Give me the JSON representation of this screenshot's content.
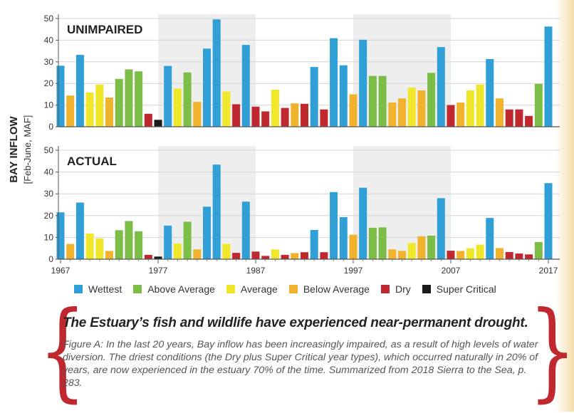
{
  "chart_data": {
    "type": "bar",
    "ylabel": "BAY INFLOW",
    "ylabel_sub": "[Feb-June, MAF]",
    "x_ticks": [
      "1967",
      "1977",
      "1987",
      "1997",
      "2007",
      "2017"
    ],
    "x_range": [
      1967,
      2017
    ],
    "y_ticks": [
      "0",
      "10",
      "20",
      "30",
      "40",
      "50"
    ],
    "ylim": [
      0,
      50
    ],
    "legend_position": "bottom",
    "shaded_bands": [
      [
        1977,
        1987
      ],
      [
        1997,
        2007
      ]
    ],
    "legend": [
      {
        "key": "W",
        "label": "Wettest",
        "color": "#2f9fd6"
      },
      {
        "key": "AN",
        "label": "Above Average",
        "color": "#7cbd48"
      },
      {
        "key": "N",
        "label": "Average",
        "color": "#f0e72a"
      },
      {
        "key": "BN",
        "label": "Below Average",
        "color": "#f1b32d"
      },
      {
        "key": "D",
        "label": "Dry",
        "color": "#c0282f"
      },
      {
        "key": "C",
        "label": "Super Critical",
        "color": "#1a1a1a"
      }
    ],
    "years": [
      1967,
      1968,
      1969,
      1970,
      1971,
      1972,
      1973,
      1974,
      1975,
      1976,
      1977,
      1978,
      1979,
      1980,
      1981,
      1982,
      1983,
      1984,
      1985,
      1986,
      1987,
      1988,
      1989,
      1990,
      1991,
      1992,
      1993,
      1994,
      1995,
      1996,
      1997,
      1998,
      1999,
      2000,
      2001,
      2002,
      2003,
      2004,
      2005,
      2006,
      2007,
      2008,
      2009,
      2010,
      2011,
      2012,
      2013,
      2014,
      2015,
      2016,
      2017
    ],
    "year_types": [
      "W",
      "BN",
      "W",
      "N",
      "N",
      "BN",
      "AN",
      "AN",
      "AN",
      "D",
      "C",
      "W",
      "N",
      "AN",
      "BN",
      "W",
      "W",
      "N",
      "D",
      "W",
      "D",
      "D",
      "N",
      "D",
      "BN",
      "D",
      "W",
      "D",
      "W",
      "W",
      "BN",
      "W",
      "AN",
      "AN",
      "BN",
      "BN",
      "N",
      "BN",
      "AN",
      "W",
      "D",
      "BN",
      "N",
      "N",
      "W",
      "BN",
      "D",
      "D",
      "D",
      "AN",
      "W"
    ],
    "panels": [
      {
        "title": "UNIMPAIRED",
        "values": [
          28.2,
          14.4,
          33.2,
          15.8,
          19.5,
          13.5,
          22.1,
          26.5,
          25.6,
          6.0,
          3.2,
          28.1,
          17.6,
          25.1,
          11.5,
          36.1,
          49.6,
          16.3,
          10.4,
          37.8,
          9.3,
          7.1,
          17.1,
          8.7,
          10.8,
          10.6,
          27.6,
          8.0,
          40.9,
          28.4,
          15.0,
          40.2,
          23.5,
          23.5,
          11.2,
          13.1,
          18.1,
          16.8,
          24.9,
          36.8,
          10.0,
          11.2,
          16.8,
          19.5,
          31.3,
          13.1,
          8.0,
          8.0,
          5.0,
          19.8,
          46.3
        ]
      },
      {
        "title": "ACTUAL",
        "values": [
          21.5,
          7.0,
          26.0,
          11.8,
          9.5,
          3.8,
          13.3,
          17.5,
          12.8,
          2.0,
          1.2,
          15.4,
          7.2,
          17.2,
          4.5,
          24.1,
          43.4,
          7.0,
          2.9,
          26.4,
          3.5,
          1.5,
          4.5,
          2.0,
          2.8,
          3.2,
          13.4,
          3.2,
          30.8,
          19.3,
          11.2,
          32.8,
          14.4,
          14.6,
          4.5,
          3.8,
          7.5,
          10.5,
          10.8,
          28.0,
          3.9,
          3.8,
          5.0,
          6.7,
          18.9,
          5.1,
          3.3,
          2.6,
          2.2,
          7.9,
          34.9
        ]
      }
    ]
  },
  "headline": "The Estuary’s fish and wildlife have experienced near-permanent drought.",
  "caption": "Figure A: In the last 20 years, Bay inflow has been increasingly impaired, as a result of high levels of water diversion. The driest conditions (the Dry plus Super Critical year types), which occurred naturally in 20% of years, are now experienced in the estuary 70% of the time. Summarized from 2018 Sierra to the Sea, p. 283."
}
